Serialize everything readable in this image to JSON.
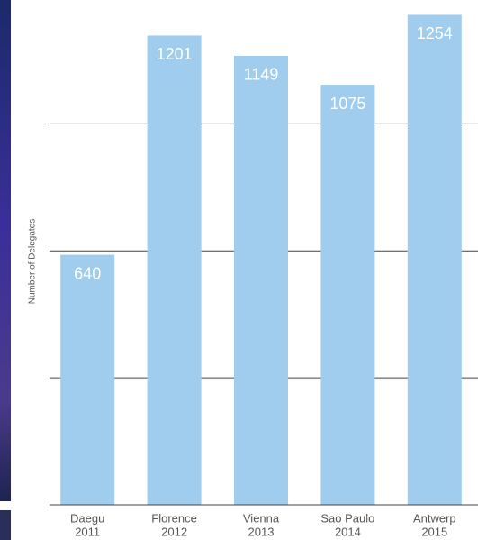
{
  "chart_data": {
    "type": "bar",
    "y_label": "Number of Delegates",
    "categories": [
      [
        "Daegu",
        "2011"
      ],
      [
        "Florence",
        "2012"
      ],
      [
        "Vienna",
        "2013"
      ],
      [
        "Sao Paulo",
        "2014"
      ],
      [
        "Antwerp",
        "2015"
      ]
    ],
    "values": [
      640,
      1201,
      1149,
      1075,
      1254
    ],
    "color": "#a0cdee",
    "ylim": [
      0,
      1292
    ],
    "gridlines": [
      325,
      650,
      975
    ],
    "grid": true
  }
}
